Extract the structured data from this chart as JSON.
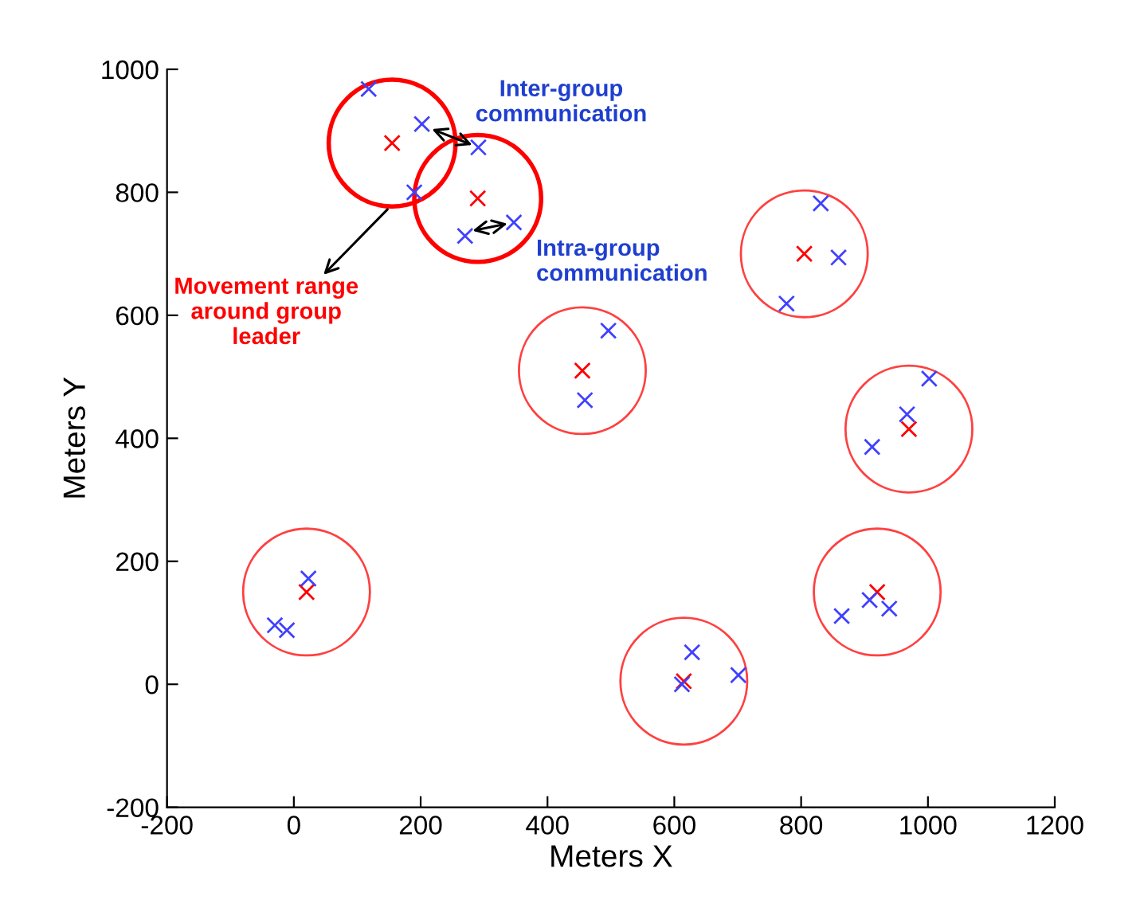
{
  "chart_data": {
    "type": "scatter",
    "xlabel": "Meters X",
    "ylabel": "Meters Y",
    "xlim": [
      -200,
      1200
    ],
    "xticks": [
      -200,
      0,
      200,
      400,
      600,
      800,
      1000,
      1200
    ],
    "ylim": [
      -200,
      1000
    ],
    "yticks": [
      -200,
      0,
      200,
      400,
      600,
      800,
      1000
    ],
    "grid": false,
    "legend": false,
    "marker": "cross",
    "series": [
      {
        "type": "bubble",
        "marker": "circle",
        "color": "#ff0000",
        "x": [
          155,
          290
        ],
        "values": [
          880,
          790
        ],
        "sizes": [
          1,
          1
        ]
      },
      {
        "type": "bubble",
        "marker": "circle",
        "color": "#ff4040",
        "x": [
          455,
          805,
          970,
          920,
          615,
          20
        ],
        "values": [
          510,
          700,
          415,
          150,
          5,
          150
        ],
        "sizes": [
          1,
          1,
          1,
          1,
          1,
          1
        ]
      },
      {
        "color": "#ff0000",
        "x": [
          155,
          290,
          455,
          805,
          970,
          920,
          615,
          20
        ],
        "values": [
          880,
          790,
          510,
          700,
          415,
          150,
          5,
          150
        ]
      },
      {
        "color": "#4040ff",
        "x": [
          118,
          202,
          190,
          291,
          347,
          270,
          496,
          459,
          831,
          859,
          777,
          1002,
          967,
          912,
          864,
          908,
          939,
          628,
          701,
          612,
          23,
          -30,
          -11
        ],
        "values": [
          968,
          911,
          800,
          873,
          751,
          729,
          575,
          462,
          782,
          694,
          619,
          497,
          439,
          386,
          111,
          137,
          123,
          52,
          15,
          0,
          172,
          96,
          88
        ]
      }
    ],
    "annotations": [
      {
        "text": "Inter-group\ncommunication",
        "x": 291,
        "y": 873
      },
      {
        "text": "Intra-group\ncommunication",
        "x": 347,
        "y": 751
      },
      {
        "text": "Movement range\naround group\nleader",
        "x": 155,
        "y": 780
      }
    ]
  }
}
